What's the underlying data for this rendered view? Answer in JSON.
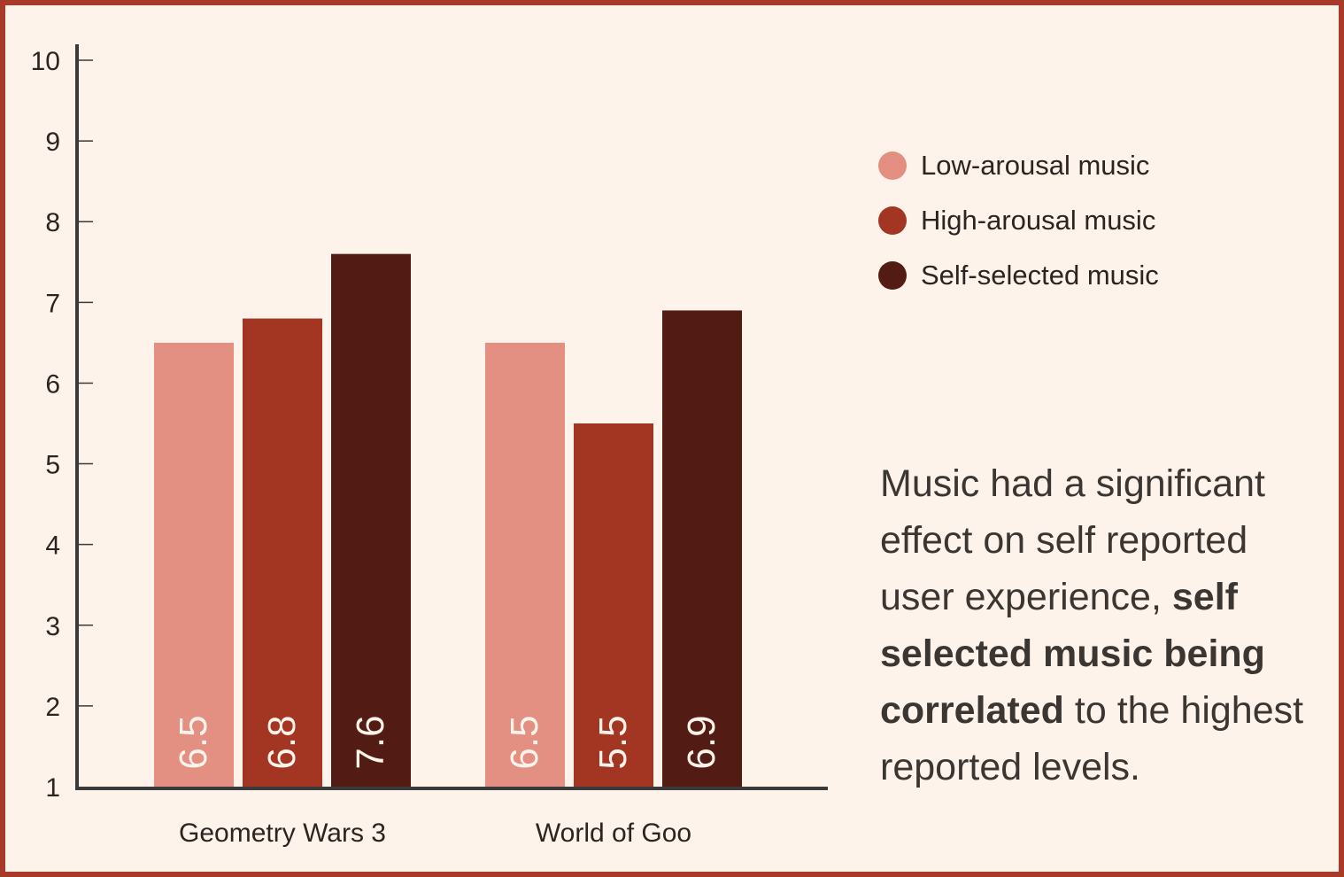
{
  "chart_data": {
    "type": "bar",
    "categories": [
      "Geometry Wars 3",
      "World of Goo"
    ],
    "series": [
      {
        "name": "Low-arousal music",
        "color": "#e39083",
        "values": [
          6.5,
          6.5
        ]
      },
      {
        "name": "High-arousal music",
        "color": "#a33623",
        "values": [
          6.8,
          5.5
        ]
      },
      {
        "name": "Self-selected music",
        "color": "#521b14",
        "values": [
          7.6,
          6.9
        ]
      }
    ],
    "ylim": [
      1,
      10
    ],
    "yticks": [
      "1",
      "2",
      "3",
      "4",
      "5",
      "6",
      "7",
      "8",
      "9",
      "10"
    ],
    "data_labels": [
      [
        "6.5",
        "6.5"
      ],
      [
        "6.8",
        "5.5"
      ],
      [
        "7.6",
        "6.9"
      ]
    ],
    "legend_position": "right",
    "grid": false,
    "xlabel": "",
    "ylabel": "",
    "title": ""
  },
  "annotation": {
    "part1": "Music had a significant effect on self reported user experience, ",
    "bold1": "self selected music being correlated",
    "part2": " to the highest reported levels."
  },
  "colors": {
    "frame": "#a93a2a",
    "background": "#fdf3ea",
    "axis": "#3a3a3a"
  }
}
